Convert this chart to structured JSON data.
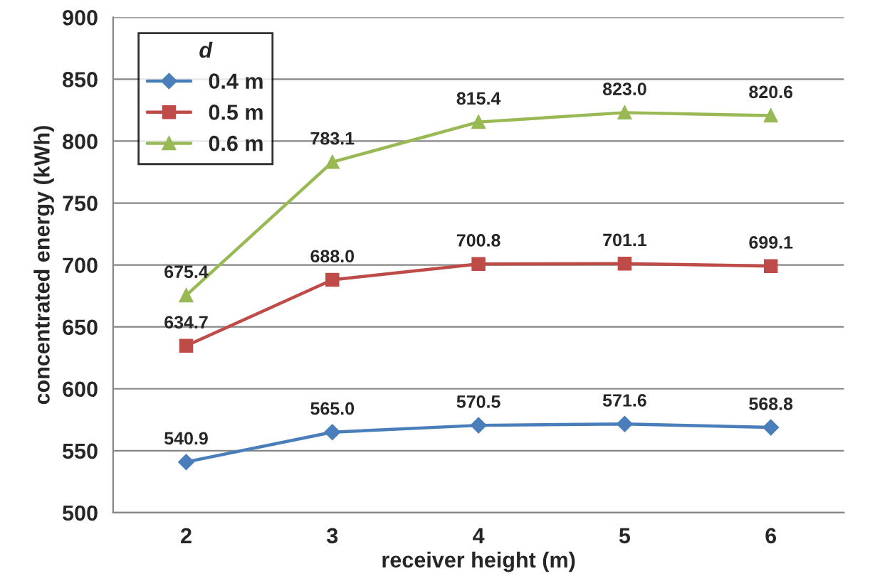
{
  "chart_data": {
    "type": "line",
    "xlabel": "receiver height (m)",
    "ylabel": "concentrated energy (kWh)",
    "categories": [
      "2",
      "3",
      "4",
      "5",
      "6"
    ],
    "series": [
      {
        "name": "0.4 m",
        "color": "#4a7ebb",
        "marker": "diamond",
        "values": [
          540.9,
          565.0,
          570.5,
          571.6,
          568.8
        ],
        "value_labels": [
          "540.9",
          "565.0",
          "570.5",
          "571.6",
          "568.8"
        ]
      },
      {
        "name": "0.5 m",
        "color": "#be4b48",
        "marker": "square",
        "values": [
          634.7,
          688.0,
          700.8,
          701.1,
          699.1
        ],
        "value_labels": [
          "634.7",
          "688.0",
          "700.8",
          "701.1",
          "699.1"
        ]
      },
      {
        "name": "0.6 m",
        "color": "#98b954",
        "marker": "triangle",
        "values": [
          675.4,
          783.1,
          815.4,
          823.0,
          820.6
        ],
        "value_labels": [
          "675.4",
          "783.1",
          "815.4",
          "823.0",
          "820.6"
        ]
      }
    ],
    "legend_title": "d",
    "legend": "top left",
    "ylim": [
      500,
      900
    ],
    "yticks": [
      500,
      550,
      600,
      650,
      700,
      750,
      800,
      850,
      900
    ],
    "grid": "y",
    "line_style": "solid"
  }
}
